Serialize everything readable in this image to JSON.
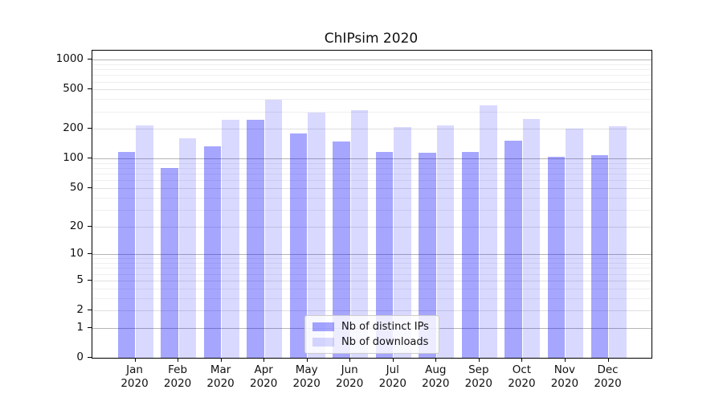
{
  "chart_data": {
    "type": "bar",
    "title": "ChIPsim 2020",
    "categories": [
      "Jan",
      "Feb",
      "Mar",
      "Apr",
      "May",
      "Jun",
      "Jul",
      "Aug",
      "Sep",
      "Oct",
      "Nov",
      "Dec"
    ],
    "category_year": "2020",
    "series": [
      {
        "name": "Nb of distinct IPs",
        "color_hex": "#0000FF",
        "alpha": 0.35,
        "values": [
          117,
          80,
          134,
          247,
          180,
          149,
          117,
          114,
          118,
          151,
          105,
          108
        ]
      },
      {
        "name": "Nb of downloads",
        "color_hex": "#0000FF",
        "alpha": 0.15,
        "values": [
          218,
          162,
          246,
          395,
          293,
          312,
          208,
          219,
          348,
          252,
          200,
          215
        ]
      }
    ],
    "yscale": "symlog-like: position proportional to log10(value+1)",
    "yticks": [
      0,
      1,
      2,
      5,
      10,
      20,
      50,
      100,
      200,
      500,
      1000
    ],
    "ylim": [
      0,
      1235
    ],
    "xlabel": "",
    "ylabel": "",
    "grid": "horizontal major + minor",
    "legend_position": "inside lower-center",
    "colors": {
      "bar_distinct_ips_rendered": "#A6A6F6",
      "bar_downloads_rendered": "#D9D9FA",
      "grid_major_power10": "#b5b5b5",
      "grid_major_other": "#e0e0e0",
      "grid_minor": "#efefef",
      "spine": "#000000",
      "background": "#ffffff"
    }
  }
}
